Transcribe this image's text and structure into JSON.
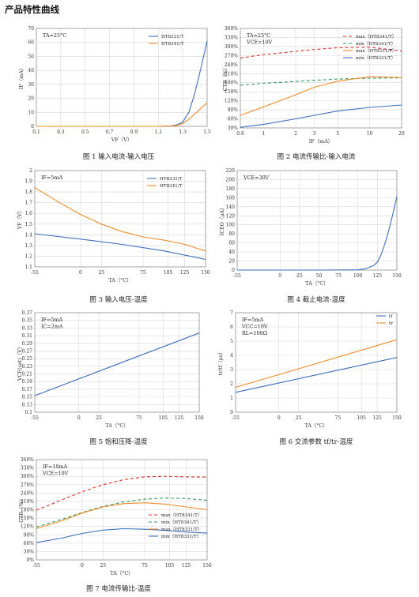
{
  "page": {
    "title": "产品特性曲线"
  },
  "chart_data": [
    {
      "id": "fig1",
      "type": "line",
      "caption": "图 1 输入电流-输入电压",
      "annotation": [
        "TA=25°C"
      ],
      "xlabel": "VF（V）",
      "ylabel": "IF（mA）",
      "x_ticks": [
        "0.1",
        "0.3",
        "0.5",
        "0.7",
        "0.9",
        "1.1",
        "1.3",
        "1.5"
      ],
      "y_ticks": [
        "0",
        "10",
        "20",
        "30",
        "40",
        "50",
        "60",
        "70"
      ],
      "xlim": [
        0.1,
        1.5
      ],
      "ylim": [
        0,
        70
      ],
      "legend": "top-right",
      "series": [
        {
          "name": "HT8331/T",
          "color": "#3d6ebd",
          "dash": "",
          "x": [
            0.1,
            0.5,
            0.9,
            1.1,
            1.2,
            1.25,
            1.3,
            1.35,
            1.4,
            1.45,
            1.5
          ],
          "y": [
            0,
            0,
            0,
            0,
            0.3,
            1,
            3,
            10,
            24,
            42,
            61
          ]
        },
        {
          "name": "HT8341/T",
          "color": "#f08c2a",
          "dash": "",
          "x": [
            0.1,
            0.5,
            0.9,
            1.1,
            1.2,
            1.25,
            1.3,
            1.35,
            1.4,
            1.45,
            1.5
          ],
          "y": [
            0,
            0,
            0,
            0,
            0.2,
            0.6,
            2,
            5,
            9,
            13,
            17
          ]
        }
      ]
    },
    {
      "id": "fig2",
      "type": "line",
      "caption": "图 2 电流传输比-输入电流",
      "annotation": [
        "TA=25°C",
        "VCE=10V"
      ],
      "xlabel": "IF（mA）",
      "ylabel": "CTR（%）",
      "x_ticks": [
        "0.6",
        "1",
        "2",
        "3",
        "5",
        "10",
        "20"
      ],
      "x_values": [
        0.6,
        1,
        2,
        3,
        5,
        10,
        20
      ],
      "xscale": "log",
      "y_ticks": [
        "30%",
        "60%",
        "90%",
        "120%",
        "150%",
        "180%",
        "210%",
        "240%",
        "270%",
        "300%",
        "330%",
        "360%"
      ],
      "xlim": [
        0.6,
        20
      ],
      "ylim": [
        30,
        360
      ],
      "legend": "top-right",
      "series": [
        {
          "name": "max（HT8341/T）",
          "color": "#d9332a",
          "dash": "4,3",
          "x": [
            0.6,
            1,
            2,
            3,
            5,
            10,
            20
          ],
          "y": [
            262,
            273,
            284,
            290,
            296,
            298,
            285
          ]
        },
        {
          "name": "min（HT8341/T）",
          "color": "#2e9a5a",
          "dash": "4,3",
          "x": [
            0.6,
            1,
            2,
            3,
            5,
            10,
            20
          ],
          "y": [
            172,
            178,
            184,
            188,
            192,
            195,
            196
          ]
        },
        {
          "name": "max（HT8331/T）",
          "color": "#f08c2a",
          "dash": "",
          "x": [
            0.6,
            1,
            2,
            3,
            5,
            10,
            20
          ],
          "y": [
            72,
            100,
            140,
            165,
            185,
            200,
            197
          ]
        },
        {
          "name": "min（HT8331/T）",
          "color": "#3d6ebd",
          "dash": "",
          "x": [
            0.6,
            1,
            2,
            3,
            5,
            10,
            20
          ],
          "y": [
            32,
            42,
            60,
            72,
            86,
            98,
            106
          ]
        }
      ]
    },
    {
      "id": "fig3",
      "type": "line",
      "caption": "图 3 输入电压-温度",
      "annotation": [
        "IF=5mA"
      ],
      "xlabel": "TA（°C）",
      "ylabel": "VF（V）",
      "x_ticks": [
        "-55",
        "-25",
        "0",
        "25",
        "50",
        "75",
        "100",
        "125",
        "150"
      ],
      "x_ticks_shown": [
        "-55",
        "0",
        "25",
        "75",
        "105",
        "125",
        "150"
      ],
      "x_values_shown": [
        -55,
        0,
        25,
        75,
        105,
        125,
        150
      ],
      "y_ticks": [
        "1.1",
        "1.2",
        "1.3",
        "1.4",
        "1.5",
        "1.6",
        "1.7",
        "1.8",
        "1.9",
        "2"
      ],
      "xlim": [
        -55,
        150
      ],
      "ylim": [
        1.1,
        2
      ],
      "legend": "top-right",
      "series": [
        {
          "name": "HT8331/T",
          "color": "#3d6ebd",
          "dash": "",
          "x": [
            -55,
            0,
            50,
            100,
            150
          ],
          "y": [
            1.41,
            1.36,
            1.31,
            1.25,
            1.17
          ]
        },
        {
          "name": "HT8341/T",
          "color": "#f08c2a",
          "dash": "",
          "x": [
            -55,
            -25,
            0,
            25,
            50,
            75,
            100,
            125,
            150
          ],
          "y": [
            1.84,
            1.7,
            1.59,
            1.5,
            1.43,
            1.38,
            1.35,
            1.31,
            1.25
          ]
        }
      ]
    },
    {
      "id": "fig4",
      "type": "line",
      "caption": "图 4 截止电流-温度",
      "annotation": [
        "VCE=30V"
      ],
      "xlabel": "TA（°C）",
      "ylabel": "ICEO（μA）",
      "x_values_shown": [
        -55,
        0,
        25,
        50,
        75,
        100,
        125,
        150
      ],
      "x_ticks_shown": [
        "-55",
        "0",
        "25",
        "50",
        "75",
        "100",
        "125",
        "150"
      ],
      "y_ticks": [
        "0",
        "20",
        "40",
        "60",
        "80",
        "100",
        "120",
        "140",
        "160",
        "180",
        "200",
        "220"
      ],
      "xlim": [
        -55,
        150
      ],
      "ylim": [
        0,
        220
      ],
      "series": [
        {
          "name": "",
          "color": "#3d6ebd",
          "dash": "",
          "x": [
            -55,
            50,
            100,
            110,
            120,
            125,
            130,
            135,
            140,
            145,
            150
          ],
          "y": [
            0,
            0,
            0.5,
            3,
            10,
            18,
            35,
            60,
            90,
            125,
            163
          ]
        }
      ]
    },
    {
      "id": "fig5",
      "type": "line",
      "caption": "图 5 饱和压降-温度",
      "annotation": [
        "IF=5mA",
        "IC=2mA"
      ],
      "xlabel": "TA（°C）",
      "ylabel": "VCE(sat)（V）",
      "x_values_shown": [
        -55,
        0,
        25,
        75,
        105,
        125,
        150
      ],
      "x_ticks_shown": [
        "-55",
        "0",
        "25",
        "75",
        "105",
        "125",
        "150"
      ],
      "y_ticks": [
        "0.1",
        "0.13",
        "0.15",
        "0.17",
        "0.19",
        "0.21",
        "0.23",
        "0.25",
        "0.27",
        "0.29",
        "0.31",
        "0.33",
        "0.35",
        "0.37"
      ],
      "xlim": [
        -55,
        150
      ],
      "ylim": [
        0.1,
        0.37
      ],
      "series": [
        {
          "name": "",
          "color": "#3d6ebd",
          "dash": "",
          "x": [
            -55,
            150
          ],
          "y": [
            0.145,
            0.315
          ]
        }
      ]
    },
    {
      "id": "fig6",
      "type": "line",
      "caption": "图 6 交流参数 tf/tr-温度",
      "annotation": [
        "IF=5mA",
        "VCC=10V",
        "RL=100Ω"
      ],
      "xlabel": "TA（°C）",
      "ylabel": "tr/tf（μs）",
      "x_values_shown": [
        -55,
        0,
        25,
        75,
        105,
        125,
        150
      ],
      "x_ticks_shown": [
        "-55",
        "0",
        "25",
        "75",
        "105",
        "125",
        "150"
      ],
      "y_ticks": [
        "0",
        "1",
        "2",
        "3",
        "4",
        "5",
        "6",
        "7"
      ],
      "xlim": [
        -55,
        150
      ],
      "ylim": [
        0,
        7
      ],
      "legend": "top-right",
      "series": [
        {
          "name": "tf",
          "color": "#3d6ebd",
          "dash": "",
          "x": [
            -55,
            150
          ],
          "y": [
            1.4,
            3.85
          ]
        },
        {
          "name": "tr",
          "color": "#f08c2a",
          "dash": "",
          "x": [
            -55,
            150
          ],
          "y": [
            1.75,
            5.1
          ]
        }
      ]
    },
    {
      "id": "fig7",
      "type": "line",
      "caption": "图 7 电流传输比-温度",
      "annotation": [
        "IF=10mA",
        "VCE=10V"
      ],
      "xlabel": "TA（°C）",
      "ylabel": "CTR（%）",
      "x_values_shown": [
        -55,
        0,
        25,
        75,
        105,
        125,
        150
      ],
      "x_ticks_shown": [
        "-55",
        "0",
        "25",
        "75",
        "105",
        "125",
        "150"
      ],
      "y_ticks": [
        "0%",
        "30%",
        "60%",
        "90%",
        "120%",
        "150%",
        "180%",
        "210%",
        "240%",
        "270%",
        "300%",
        "330%",
        "360%"
      ],
      "xlim": [
        -55,
        150
      ],
      "ylim": [
        0,
        360
      ],
      "legend": "right",
      "series": [
        {
          "name": "max（HT8341/T）",
          "color": "#d9332a",
          "dash": "4,3",
          "x": [
            -55,
            -25,
            0,
            25,
            50,
            75,
            100,
            125,
            150
          ],
          "y": [
            178,
            215,
            245,
            270,
            288,
            298,
            300,
            298,
            297
          ]
        },
        {
          "name": "min（HT8341/T）",
          "color": "#2e9a5a",
          "dash": "4,3",
          "x": [
            -55,
            -25,
            0,
            25,
            50,
            75,
            100,
            125,
            150
          ],
          "y": [
            118,
            145,
            170,
            192,
            208,
            218,
            222,
            220,
            214
          ]
        },
        {
          "name": "max（HT8331/T）",
          "color": "#f08c2a",
          "dash": "",
          "x": [
            -55,
            -25,
            0,
            25,
            50,
            75,
            100,
            125,
            150
          ],
          "y": [
            112,
            140,
            168,
            190,
            202,
            205,
            200,
            190,
            180
          ]
        },
        {
          "name": "min（HT8331/T）",
          "color": "#3d6ebd",
          "dash": "",
          "x": [
            -55,
            -25,
            0,
            25,
            50,
            75,
            100,
            125,
            150
          ],
          "y": [
            62,
            78,
            95,
            107,
            112,
            110,
            106,
            100,
            96
          ]
        }
      ]
    }
  ]
}
